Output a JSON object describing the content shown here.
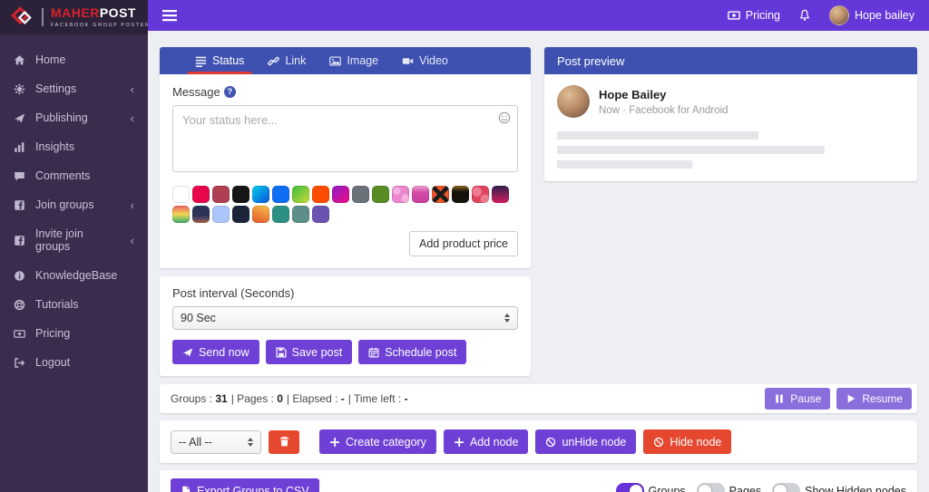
{
  "brand": {
    "name_primary": "MAHER",
    "name_secondary": "POST",
    "tagline": "FACEBOOK GROUP POSTER"
  },
  "topbar": {
    "pricing_label": "Pricing",
    "user_name": "Hope bailey"
  },
  "icons": {
    "chevron": "‹"
  },
  "sidebar": {
    "items": [
      {
        "label": "Home"
      },
      {
        "label": "Settings"
      },
      {
        "label": "Publishing"
      },
      {
        "label": "Insights"
      },
      {
        "label": "Comments"
      },
      {
        "label": "Join groups"
      },
      {
        "label": "Invite join groups"
      },
      {
        "label": "KnowledgeBase"
      },
      {
        "label": "Tutorials"
      },
      {
        "label": "Pricing"
      },
      {
        "label": "Logout"
      }
    ]
  },
  "composer": {
    "tabs": [
      {
        "label": "Status",
        "active": true
      },
      {
        "label": "Link",
        "active": false
      },
      {
        "label": "Image",
        "active": false
      },
      {
        "label": "Video",
        "active": false
      }
    ],
    "message_label": "Message",
    "help_glyph": "?",
    "placeholder": "Your status here...",
    "add_product_price_label": "Add product price",
    "swatches": [
      "#ffffff",
      "#e7074a",
      "#b13e53",
      "#161616",
      "linear-gradient(135deg,#00d2e6,#0b50e0)",
      "#0f6ef6",
      "linear-gradient(135deg,#3eb93c,#c8dc38)",
      "#fe4d01",
      "linear-gradient(135deg,#8d1ec8,#ef0a86)",
      "#6b7179",
      "#588d26",
      "radial-gradient(circle at 28% 30%, #f7b0e0 4px, transparent 4.5px), radial-gradient(circle at 78% 72%, #f7b0e0 4px, transparent 4.5px), #ea86cd",
      "linear-gradient(180deg,#ef9ed3 0%,#d14aa6 40%,#c93d9e 100%)",
      "linear-gradient(45deg, transparent 42%, #1c1c1c 42%, #1c1c1c 58%, transparent 58%), linear-gradient(-45deg, transparent 42%, #1c1c1c 42%, #1c1c1c 58%, transparent 58%), #ee5426",
      "linear-gradient(180deg,#8a6a1e 0%,#17110c 35%)",
      "radial-gradient(circle at 30% 35%, #ef7b90 5px, transparent 5.5px), radial-gradient(circle at 78% 78%, #ef7b90 5px, transparent 5.5px), #e0435f",
      "linear-gradient(180deg,#2e2150,#d61b5e)",
      "linear-gradient(180deg,#f0635b 0%,#f0995c 25%,#f3d44e 50%,#8cc460 75%,#3da56c 100%)",
      "linear-gradient(180deg,#2c3357 55%,#5b4a63 78%,#b06038 100%)",
      "#abc6fb",
      "#1b2438",
      "linear-gradient(200deg,#f5c148,#e4552c)",
      "#2c9182",
      "#5e8e89",
      "#6b53b2"
    ]
  },
  "interval": {
    "label": "Post interval (Seconds)",
    "value": "90 Sec",
    "send_label": "Send now",
    "save_label": "Save post",
    "schedule_label": "Schedule post"
  },
  "preview": {
    "title": "Post preview",
    "author": "Hope Bailey",
    "meta": "Now · Facebook for Android",
    "skeleton_widths": [
      "58%",
      "77%",
      "39%"
    ]
  },
  "statusbar": {
    "groups_label": "Groups :",
    "groups_value": "31",
    "pages_label": "| Pages :",
    "pages_value": "0",
    "elapsed_label": "| Elapsed :",
    "elapsed_value": "-",
    "timeleft_label": "| Time left :",
    "timeleft_value": "-",
    "pause_label": "Pause",
    "resume_label": "Resume"
  },
  "nodes_toolbar": {
    "filter_value": "-- All --",
    "create_category_label": "Create category",
    "add_node_label": "Add node",
    "unhide_node_label": "unHide node",
    "hide_node_label": "Hide node"
  },
  "export_bar": {
    "export_label": "Export Groups to CSV",
    "toggles": [
      {
        "label": "Groups",
        "on": true
      },
      {
        "label": "Pages",
        "on": false
      },
      {
        "label": "Show Hidden nodes",
        "on": false
      }
    ]
  },
  "theme": {
    "topbar_purple": "#6438d8",
    "sidebar_bg": "#3a2c4c",
    "logo_strip_bg": "#2b2138",
    "header_indigo": "#3f51b0",
    "button_purple": "#6e40d6",
    "button_light_purple": "#8a6fdc",
    "button_red": "#e5472f",
    "active_tab_underline": "#e23a30",
    "content_bg": "#edeff3"
  }
}
